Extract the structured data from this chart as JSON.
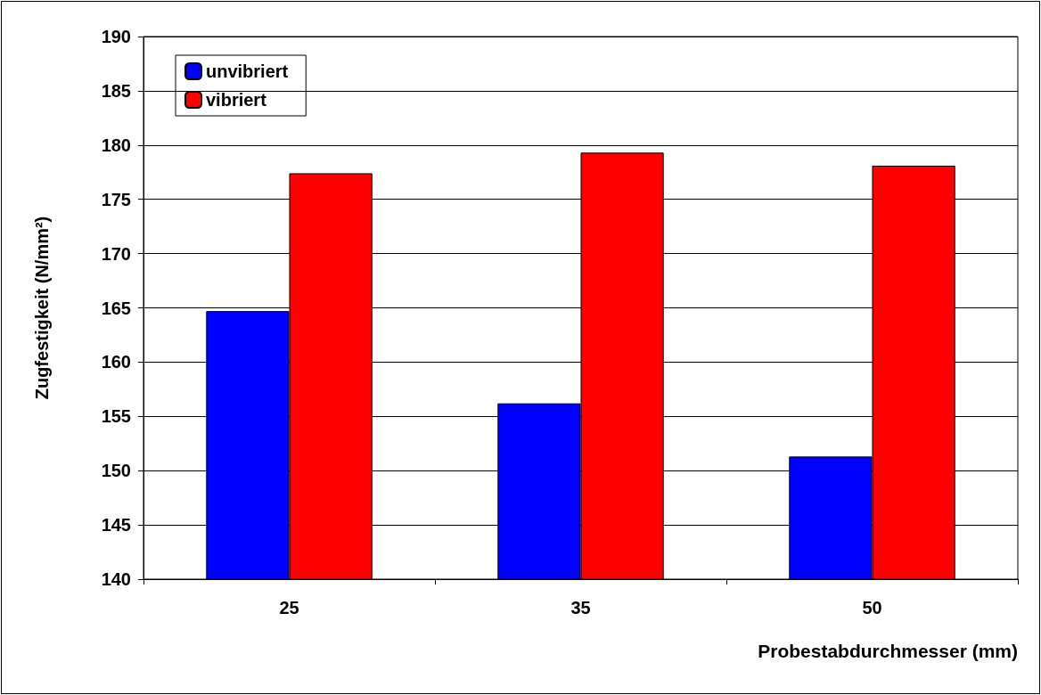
{
  "chart_data": {
    "type": "bar",
    "xlabel": "Probestabdurchmesser (mm)",
    "ylabel": "Zugfestigkeit (N/mm²)",
    "categories": [
      "25",
      "35",
      "50"
    ],
    "series": [
      {
        "name": "unvibriert",
        "color": "#0000ff",
        "values": [
          164.7,
          156.2,
          151.3
        ]
      },
      {
        "name": "vibriert",
        "color": "#ff0000",
        "values": [
          177.4,
          179.3,
          178.1
        ]
      }
    ],
    "ylim": [
      140,
      190
    ],
    "yticks": [
      140,
      145,
      150,
      155,
      160,
      165,
      170,
      175,
      180,
      185,
      190
    ],
    "grid": "y",
    "legend": "top left"
  }
}
